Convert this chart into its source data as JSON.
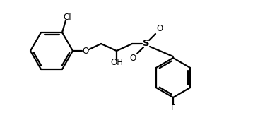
{
  "background_color": "#ffffff",
  "line_color": "#000000",
  "line_width": 1.6,
  "font_size": 8.5,
  "figsize": [
    3.92,
    1.77
  ],
  "dpi": 100,
  "xlim": [
    0.0,
    3.9
  ],
  "ylim": [
    0.0,
    1.77
  ]
}
